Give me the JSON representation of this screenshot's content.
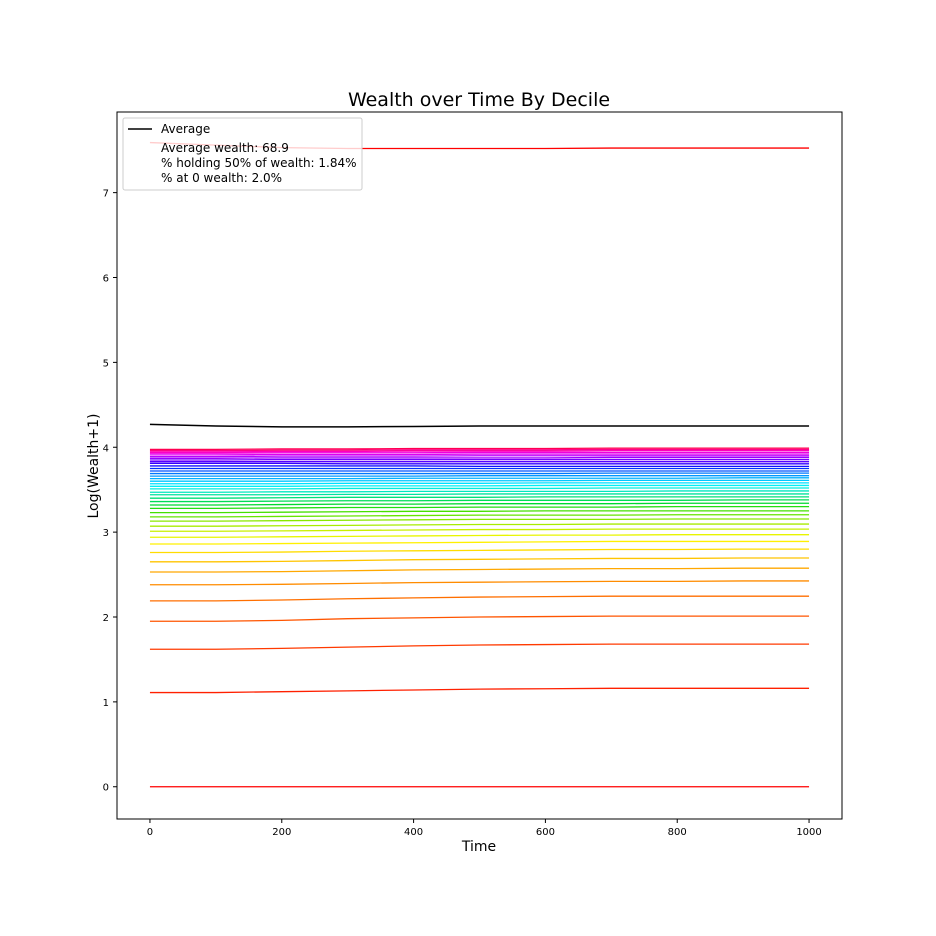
{
  "chart_data": {
    "type": "line",
    "title": "Wealth over Time By Decile",
    "xlabel": "Time",
    "ylabel": "Log(Wealth+1)",
    "xlim": [
      -50,
      1050
    ],
    "ylim": [
      -0.38,
      7.95
    ],
    "xticks": [
      0,
      200,
      400,
      600,
      800,
      1000
    ],
    "yticks": [
      0,
      1,
      2,
      3,
      4,
      5,
      6,
      7
    ],
    "grid": false,
    "legend_position": "top-left",
    "legend": {
      "entries": [
        "Average"
      ],
      "notes": [
        "Average wealth: 68.9",
        "% holding 50% of wealth: 1.84%",
        "% at 0 wealth: 2.0%"
      ]
    },
    "x": [
      0,
      100,
      200,
      300,
      400,
      500,
      600,
      700,
      800,
      900,
      1000
    ],
    "average": {
      "name": "Average",
      "color": "#000000",
      "values": [
        4.27,
        4.25,
        4.24,
        4.24,
        4.245,
        4.25,
        4.25,
        4.25,
        4.25,
        4.25,
        4.25
      ]
    },
    "series": [
      {
        "color": "#ff0000",
        "values": [
          0,
          0,
          0,
          0,
          0,
          0,
          0,
          0,
          0,
          0,
          0
        ]
      },
      {
        "color": "#ff2000",
        "values": [
          1.11,
          1.11,
          1.12,
          1.13,
          1.14,
          1.15,
          1.155,
          1.16,
          1.16,
          1.16,
          1.16
        ]
      },
      {
        "color": "#ff3a00",
        "values": [
          1.62,
          1.62,
          1.63,
          1.645,
          1.66,
          1.67,
          1.675,
          1.68,
          1.68,
          1.68,
          1.68
        ]
      },
      {
        "color": "#ff5500",
        "values": [
          1.95,
          1.95,
          1.96,
          1.98,
          1.99,
          2.0,
          2.005,
          2.01,
          2.01,
          2.01,
          2.01
        ]
      },
      {
        "color": "#ff6f00",
        "values": [
          2.19,
          2.19,
          2.2,
          2.215,
          2.225,
          2.235,
          2.24,
          2.245,
          2.245,
          2.245,
          2.245
        ]
      },
      {
        "color": "#ff8c00",
        "values": [
          2.38,
          2.38,
          2.385,
          2.395,
          2.405,
          2.41,
          2.415,
          2.42,
          2.42,
          2.425,
          2.425
        ]
      },
      {
        "color": "#ffa800",
        "values": [
          2.53,
          2.53,
          2.535,
          2.545,
          2.555,
          2.56,
          2.565,
          2.57,
          2.57,
          2.575,
          2.575
        ]
      },
      {
        "color": "#ffc400",
        "values": [
          2.65,
          2.65,
          2.655,
          2.665,
          2.675,
          2.68,
          2.685,
          2.69,
          2.69,
          2.695,
          2.695
        ]
      },
      {
        "color": "#ffdc00",
        "values": [
          2.76,
          2.76,
          2.765,
          2.775,
          2.78,
          2.785,
          2.79,
          2.795,
          2.795,
          2.8,
          2.8
        ]
      },
      {
        "color": "#fff000",
        "values": [
          2.86,
          2.86,
          2.865,
          2.87,
          2.875,
          2.88,
          2.885,
          2.89,
          2.89,
          2.89,
          2.89
        ]
      },
      {
        "color": "#e8f500",
        "values": [
          2.94,
          2.94,
          2.945,
          2.95,
          2.955,
          2.96,
          2.965,
          2.965,
          2.97,
          2.97,
          2.97
        ]
      },
      {
        "color": "#c8f000",
        "values": [
          3.01,
          3.01,
          3.015,
          3.02,
          3.025,
          3.03,
          3.03,
          3.035,
          3.035,
          3.035,
          3.035
        ]
      },
      {
        "color": "#a8ec00",
        "values": [
          3.07,
          3.07,
          3.075,
          3.08,
          3.085,
          3.09,
          3.09,
          3.095,
          3.095,
          3.095,
          3.095
        ]
      },
      {
        "color": "#88e800",
        "values": [
          3.13,
          3.13,
          3.135,
          3.14,
          3.145,
          3.15,
          3.15,
          3.15,
          3.155,
          3.155,
          3.155
        ]
      },
      {
        "color": "#66e400",
        "values": [
          3.18,
          3.18,
          3.185,
          3.19,
          3.195,
          3.2,
          3.2,
          3.2,
          3.205,
          3.205,
          3.205
        ]
      },
      {
        "color": "#44e000",
        "values": [
          3.23,
          3.23,
          3.235,
          3.24,
          3.245,
          3.245,
          3.25,
          3.25,
          3.25,
          3.25,
          3.25
        ]
      },
      {
        "color": "#22dd10",
        "values": [
          3.28,
          3.28,
          3.285,
          3.29,
          3.29,
          3.295,
          3.295,
          3.295,
          3.3,
          3.3,
          3.3
        ]
      },
      {
        "color": "#00da30",
        "values": [
          3.32,
          3.32,
          3.325,
          3.33,
          3.33,
          3.335,
          3.335,
          3.335,
          3.34,
          3.34,
          3.34
        ]
      },
      {
        "color": "#00dd55",
        "values": [
          3.36,
          3.36,
          3.365,
          3.37,
          3.37,
          3.375,
          3.375,
          3.375,
          3.375,
          3.38,
          3.38
        ]
      },
      {
        "color": "#00e07a",
        "values": [
          3.4,
          3.4,
          3.405,
          3.41,
          3.41,
          3.41,
          3.415,
          3.415,
          3.415,
          3.415,
          3.415
        ]
      },
      {
        "color": "#00e49e",
        "values": [
          3.44,
          3.44,
          3.44,
          3.445,
          3.445,
          3.45,
          3.45,
          3.45,
          3.45,
          3.45,
          3.45
        ]
      },
      {
        "color": "#00e8c0",
        "values": [
          3.47,
          3.47,
          3.475,
          3.475,
          3.48,
          3.48,
          3.48,
          3.48,
          3.485,
          3.485,
          3.485
        ]
      },
      {
        "color": "#00ecdd",
        "values": [
          3.51,
          3.51,
          3.51,
          3.515,
          3.515,
          3.515,
          3.515,
          3.52,
          3.52,
          3.52,
          3.52
        ]
      },
      {
        "color": "#00f0f5",
        "values": [
          3.54,
          3.54,
          3.54,
          3.545,
          3.545,
          3.545,
          3.55,
          3.55,
          3.55,
          3.55,
          3.55
        ]
      },
      {
        "color": "#00e0ff",
        "values": [
          3.57,
          3.57,
          3.57,
          3.575,
          3.575,
          3.575,
          3.58,
          3.58,
          3.58,
          3.58,
          3.58
        ]
      },
      {
        "color": "#00c8ff",
        "values": [
          3.6,
          3.6,
          3.6,
          3.605,
          3.605,
          3.605,
          3.605,
          3.61,
          3.61,
          3.61,
          3.61
        ]
      },
      {
        "color": "#00b0ff",
        "values": [
          3.63,
          3.63,
          3.63,
          3.63,
          3.635,
          3.635,
          3.635,
          3.635,
          3.635,
          3.64,
          3.64
        ]
      },
      {
        "color": "#0098ff",
        "values": [
          3.66,
          3.66,
          3.66,
          3.66,
          3.66,
          3.665,
          3.665,
          3.665,
          3.665,
          3.665,
          3.665
        ]
      },
      {
        "color": "#0078ff",
        "values": [
          3.69,
          3.69,
          3.69,
          3.69,
          3.69,
          3.69,
          3.69,
          3.695,
          3.695,
          3.695,
          3.695
        ]
      },
      {
        "color": "#0055ff",
        "values": [
          3.72,
          3.72,
          3.72,
          3.72,
          3.72,
          3.72,
          3.72,
          3.72,
          3.72,
          3.72,
          3.72
        ]
      },
      {
        "color": "#0030ff",
        "values": [
          3.75,
          3.75,
          3.75,
          3.75,
          3.75,
          3.75,
          3.75,
          3.75,
          3.75,
          3.75,
          3.75
        ]
      },
      {
        "color": "#1010ff",
        "values": [
          3.78,
          3.78,
          3.78,
          3.78,
          3.78,
          3.775,
          3.775,
          3.775,
          3.775,
          3.775,
          3.775
        ]
      },
      {
        "color": "#3300ff",
        "values": [
          3.81,
          3.81,
          3.81,
          3.805,
          3.805,
          3.805,
          3.805,
          3.805,
          3.805,
          3.805,
          3.805
        ]
      },
      {
        "color": "#5500ff",
        "values": [
          3.83,
          3.83,
          3.83,
          3.83,
          3.83,
          3.83,
          3.83,
          3.83,
          3.83,
          3.83,
          3.83
        ]
      },
      {
        "color": "#7700ff",
        "values": [
          3.85,
          3.85,
          3.855,
          3.855,
          3.855,
          3.855,
          3.855,
          3.855,
          3.855,
          3.855,
          3.855
        ]
      },
      {
        "color": "#9900ff",
        "values": [
          3.87,
          3.87,
          3.875,
          3.875,
          3.875,
          3.875,
          3.875,
          3.88,
          3.88,
          3.88,
          3.88
        ]
      },
      {
        "color": "#bb00ff",
        "values": [
          3.89,
          3.89,
          3.895,
          3.895,
          3.895,
          3.9,
          3.9,
          3.9,
          3.9,
          3.9,
          3.9
        ]
      },
      {
        "color": "#dd00f0",
        "values": [
          3.91,
          3.91,
          3.915,
          3.915,
          3.915,
          3.92,
          3.92,
          3.92,
          3.92,
          3.92,
          3.92
        ]
      },
      {
        "color": "#f000dd",
        "values": [
          3.93,
          3.93,
          3.935,
          3.935,
          3.935,
          3.94,
          3.94,
          3.94,
          3.94,
          3.94,
          3.94
        ]
      },
      {
        "color": "#ff00bb",
        "values": [
          3.945,
          3.945,
          3.95,
          3.95,
          3.955,
          3.955,
          3.955,
          3.96,
          3.96,
          3.96,
          3.96
        ]
      },
      {
        "color": "#ff0088",
        "values": [
          3.96,
          3.96,
          3.965,
          3.965,
          3.97,
          3.97,
          3.97,
          3.975,
          3.975,
          3.975,
          3.975
        ]
      },
      {
        "color": "#ff0050",
        "values": [
          3.975,
          3.975,
          3.98,
          3.98,
          3.985,
          3.985,
          3.985,
          3.99,
          3.99,
          3.99,
          3.99
        ]
      },
      {
        "color": "#ff0000",
        "values": [
          7.59,
          7.56,
          7.53,
          7.52,
          7.52,
          7.52,
          7.52,
          7.525,
          7.525,
          7.525,
          7.525
        ]
      }
    ]
  }
}
